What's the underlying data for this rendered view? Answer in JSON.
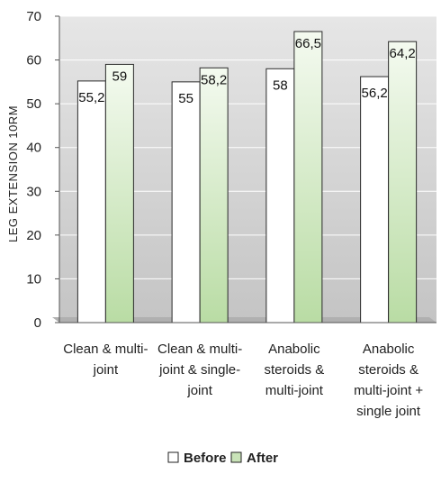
{
  "chart_data": {
    "type": "bar",
    "ylabel": "LEG EXTENSION 10RM",
    "ylim": [
      0,
      70
    ],
    "yticks": [
      "0",
      "10",
      "20",
      "30",
      "40",
      "50",
      "60",
      "70"
    ],
    "grid": true,
    "legend_position": "bottom",
    "categories": [
      [
        "Clean & multi-",
        "joint"
      ],
      [
        "Clean & multi-",
        "joint & single-",
        "joint"
      ],
      [
        "Anabolic",
        "steroids &",
        "multi-joint"
      ],
      [
        "Anabolic",
        "steroids &",
        "multi-joint +",
        "single joint"
      ]
    ],
    "series": [
      {
        "name": "Before",
        "values": [
          55.2,
          55,
          58,
          56.2
        ],
        "labels": [
          "55,2",
          "55",
          "58",
          "56,2"
        ],
        "color": "#ffffff"
      },
      {
        "name": "After",
        "values": [
          59,
          58.2,
          66.5,
          64.2
        ],
        "labels": [
          "59",
          "58,2",
          "66,5",
          "64,2"
        ],
        "color": "#c9e3b8"
      }
    ]
  }
}
